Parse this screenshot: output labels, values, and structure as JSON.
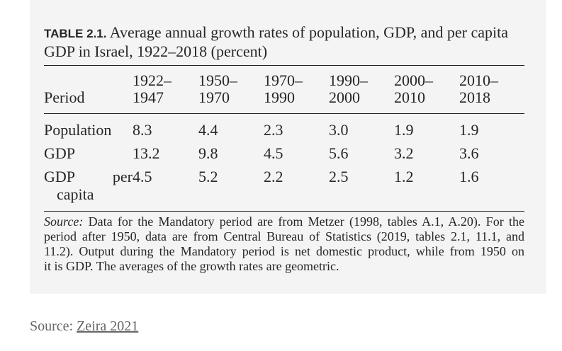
{
  "table": {
    "label": "TABLE 2.1.",
    "title": "Average annual growth rates of population, GDP, and per capita GDP in Israel, 1922–2018 (percent)",
    "period_header": "Period",
    "columns": [
      {
        "top": "1922–",
        "bottom": "1947"
      },
      {
        "top": "1950–",
        "bottom": "1970"
      },
      {
        "top": "1970–",
        "bottom": "1990"
      },
      {
        "top": "1990–",
        "bottom": "2000"
      },
      {
        "top": "2000–",
        "bottom": "2010"
      },
      {
        "top": "2010–",
        "bottom": "2018"
      }
    ],
    "rows": [
      {
        "label": "Population",
        "values": [
          "8.3",
          "4.4",
          "2.3",
          "3.0",
          "1.9",
          "1.9"
        ]
      },
      {
        "label": "GDP",
        "values": [
          "13.2",
          "9.8",
          "4.5",
          "5.6",
          "3.2",
          "3.6"
        ]
      },
      {
        "label": "GDP per capita",
        "values": [
          "4.5",
          "5.2",
          "2.2",
          "2.5",
          "1.2",
          "1.6"
        ]
      }
    ],
    "note": {
      "label": "Source:",
      "lines": [
        "Data for the Mandatory period are from Metzer (1998, tables A.1, A.20). For the",
        "period after 1950, data are from Central Bureau of Statistics (2019, tables 2.1, 11.1, and",
        "11.2). Output during the Mandatory period is net domestic product, while from 1950 on",
        "it is GDP. The averages of the growth rates are geometric."
      ]
    }
  },
  "credit": {
    "prefix": "Source:",
    "link_text": "Zeira 2021"
  }
}
